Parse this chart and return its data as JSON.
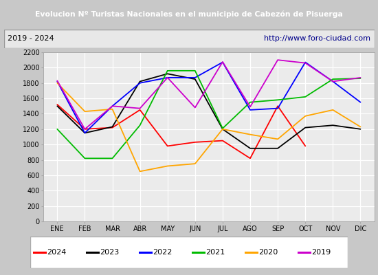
{
  "title": "Evolucion Nº Turistas Nacionales en el municipio de Cabezón de Pisuerga",
  "subtitle_left": "2019 - 2024",
  "subtitle_right": "http://www.foro-ciudad.com",
  "months": [
    "ENE",
    "FEB",
    "MAR",
    "ABR",
    "MAY",
    "JUN",
    "JUL",
    "AGO",
    "SEP",
    "OCT",
    "NOV",
    "DIC"
  ],
  "series": {
    "2024": [
      1520,
      1200,
      1220,
      1450,
      980,
      1030,
      1050,
      820,
      1500,
      980,
      null,
      null
    ],
    "2023": [
      1500,
      1150,
      1230,
      1820,
      1920,
      1850,
      1200,
      950,
      950,
      1220,
      1250,
      1200
    ],
    "2022": [
      1820,
      1150,
      1500,
      1800,
      1870,
      1870,
      2070,
      1450,
      1470,
      2070,
      1820,
      1550
    ],
    "2021": [
      1200,
      820,
      820,
      1250,
      1960,
      1960,
      1210,
      1550,
      1580,
      1620,
      1850,
      1860
    ],
    "2020": [
      1800,
      1430,
      1460,
      650,
      720,
      750,
      1200,
      1130,
      1070,
      1370,
      1450,
      1230
    ],
    "2019": [
      1830,
      1200,
      1500,
      1470,
      1870,
      1480,
      2075,
      1490,
      2100,
      2060,
      1820,
      1870
    ]
  },
  "colors": {
    "2024": "#ff0000",
    "2023": "#000000",
    "2022": "#0000ff",
    "2021": "#00bb00",
    "2020": "#ffa500",
    "2019": "#cc00cc"
  },
  "ylim": [
    0,
    2200
  ],
  "yticks": [
    0,
    200,
    400,
    600,
    800,
    1000,
    1200,
    1400,
    1600,
    1800,
    2000,
    2200
  ],
  "title_bg": "#3a6abf",
  "title_fg": "#ffffff",
  "plot_bg": "#ebebeb",
  "outer_bg": "#c8c8c8",
  "grid_color": "#ffffff",
  "legend_order": [
    "2024",
    "2023",
    "2022",
    "2021",
    "2020",
    "2019"
  ]
}
